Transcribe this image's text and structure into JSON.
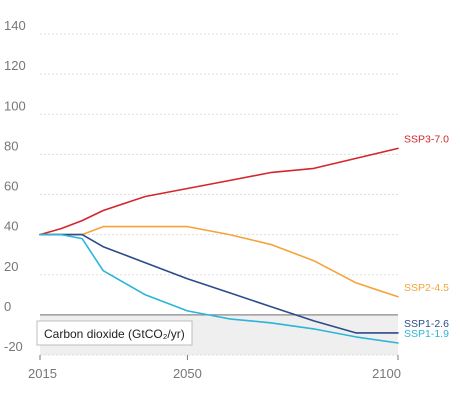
{
  "chart_data": {
    "type": "line",
    "title": "",
    "xlabel": "",
    "ylabel": "",
    "panel_label": "Carbon dioxide (GtCO₂/yr)",
    "xlim": [
      2015,
      2100
    ],
    "ylim": [
      -20,
      140
    ],
    "x_ticks": [
      2015,
      2050,
      2100
    ],
    "y_ticks": [
      -20,
      0,
      20,
      40,
      60,
      80,
      100,
      120,
      140
    ],
    "grid": "horizontal",
    "negative_region_shaded": true,
    "series": [
      {
        "name": "SSP3-7.0",
        "color": "#d4262b",
        "x": [
          2015,
          2020,
          2025,
          2030,
          2040,
          2050,
          2060,
          2070,
          2080,
          2090,
          2100
        ],
        "y": [
          40,
          43,
          47,
          52,
          59,
          63,
          67,
          71,
          73,
          78,
          83
        ]
      },
      {
        "name": "SSP2-4.5",
        "color": "#f5a33b",
        "x": [
          2015,
          2020,
          2025,
          2030,
          2040,
          2050,
          2060,
          2070,
          2080,
          2090,
          2100
        ],
        "y": [
          40,
          40,
          40,
          44,
          44,
          44,
          40,
          35,
          27,
          16,
          9
        ]
      },
      {
        "name": "SSP1-2.6",
        "color": "#2c4b8a",
        "x": [
          2015,
          2020,
          2025,
          2030,
          2040,
          2050,
          2060,
          2070,
          2080,
          2090,
          2100
        ],
        "y": [
          40,
          40,
          40,
          34,
          26,
          18,
          11,
          4,
          -3,
          -9,
          -9
        ]
      },
      {
        "name": "SSP1-1.9",
        "color": "#2bb5d8",
        "x": [
          2015,
          2020,
          2025,
          2030,
          2040,
          2050,
          2060,
          2070,
          2080,
          2090,
          2100
        ],
        "y": [
          40,
          40,
          38,
          22,
          10,
          2,
          -2,
          -4,
          -7,
          -11,
          -14
        ]
      }
    ]
  }
}
